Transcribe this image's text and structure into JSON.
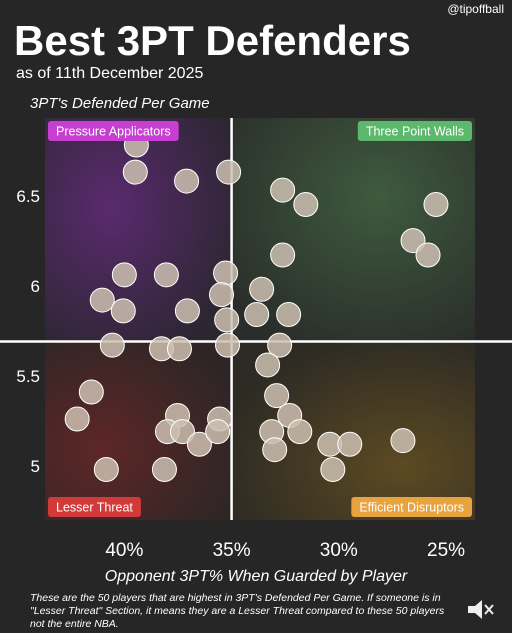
{
  "chart_data": {
    "type": "scatter",
    "handle": "@tipoffball",
    "title": "Best 3PT Defenders",
    "subtitle": "as of 11th December 2025",
    "y_label": "3PT's Defended Per Game",
    "x_label": "Opponent 3PT% When Guarded by Player",
    "note_lines": [
      "These are the 50 players that are highest in 3PT's Defended Per Game. If someone is in",
      "\"Lesser Threat\" Section, it means they are a Lesser Threat compared to these 50 players",
      "not the entire NBA."
    ],
    "xlim": [
      43.7,
      23.65
    ],
    "ylim": [
      4.71,
      6.94
    ],
    "xticks": [
      {
        "value": 40,
        "label": "40%"
      },
      {
        "value": 35,
        "label": "35%"
      },
      {
        "value": 30,
        "label": "30%"
      },
      {
        "value": 25,
        "label": "25%"
      }
    ],
    "yticks": [
      5,
      5.5,
      6,
      6.5
    ],
    "dividers": {
      "x": 35,
      "y": 5.7
    },
    "point_color": "#cdbfb0",
    "quadrants": [
      {
        "name": "Pressure Applicators",
        "color": "#c63fd0",
        "corner": "top-left"
      },
      {
        "name": "Three Point Walls",
        "color": "#5cb86c",
        "corner": "top-right"
      },
      {
        "name": "Lesser Threat",
        "color": "#d23a3a",
        "corner": "bottom-left"
      },
      {
        "name": "Efficient Disruptors",
        "color": "#e8a23e",
        "corner": "bottom-right"
      }
    ],
    "x": [
      39.44,
      39.49,
      37.1,
      35.14,
      32.62,
      31.54,
      25.47,
      26.54,
      25.84,
      32.62,
      40.0,
      38.04,
      35.28,
      33.6,
      41.03,
      40.05,
      37.06,
      35.47,
      33.83,
      32.34,
      35.23,
      40.56,
      38.27,
      37.43,
      35.19,
      32.76,
      33.32,
      41.54,
      32.9,
      32.29,
      42.2,
      37.52,
      35.56,
      37.99,
      37.29,
      36.5,
      35.65,
      33.13,
      31.82,
      30.42,
      29.49,
      27.01,
      40.84,
      38.13,
      32.99,
      30.28
    ],
    "values": [
      6.79,
      6.64,
      6.59,
      6.64,
      6.54,
      6.46,
      6.46,
      6.26,
      6.18,
      6.18,
      6.07,
      6.07,
      6.08,
      5.99,
      5.93,
      5.87,
      5.87,
      5.96,
      5.85,
      5.85,
      5.82,
      5.68,
      5.66,
      5.66,
      5.68,
      5.68,
      5.57,
      5.42,
      5.4,
      5.29,
      5.27,
      5.29,
      5.27,
      5.2,
      5.2,
      5.13,
      5.2,
      5.2,
      5.2,
      5.13,
      5.13,
      5.15,
      4.99,
      4.99,
      5.1,
      4.99
    ]
  }
}
